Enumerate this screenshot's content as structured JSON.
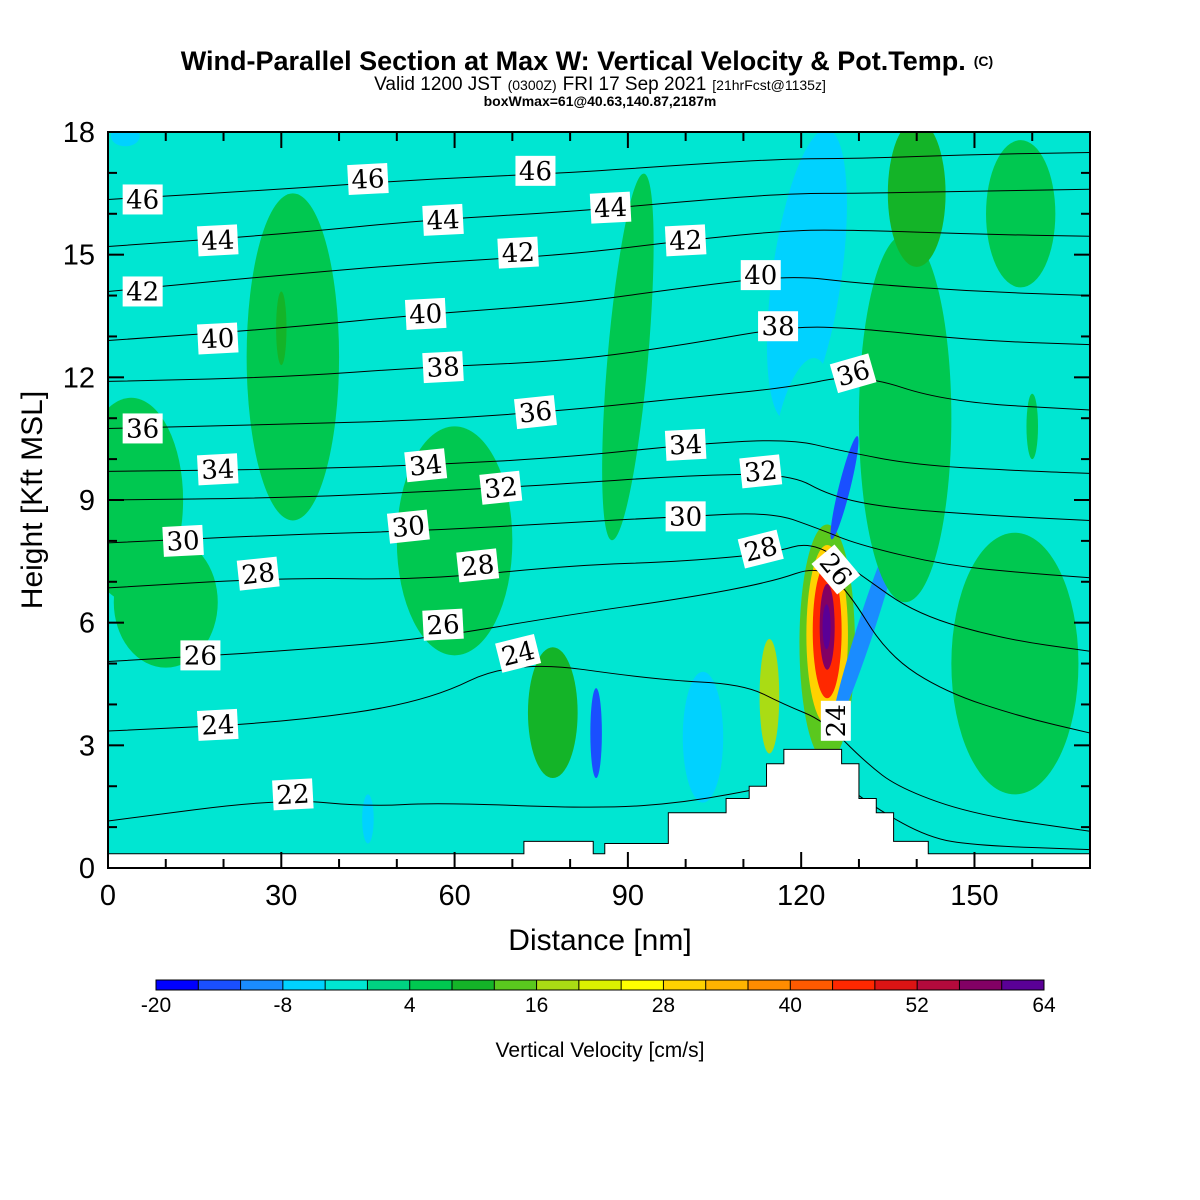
{
  "chart_data": {
    "type": "heatmap",
    "title": "Wind-Parallel Section at Max W: Vertical Velocity & Pot.Temp.",
    "title_mark": "(C)",
    "subtitle_parts": [
      "Valid 1200 JST",
      "(0300Z)",
      "FRI 17 Sep 2021",
      "[21hrFcst@1135z]"
    ],
    "subtitle2": "boxWmax=61@40.63,140.87,2187m",
    "xlabel": "Distance [nm]",
    "ylabel": "Height [Kft MSL]",
    "xlim": [
      0,
      170
    ],
    "ylim": [
      0,
      18
    ],
    "xticks": [
      0,
      30,
      60,
      90,
      120,
      150
    ],
    "yticks": [
      0,
      3,
      6,
      9,
      12,
      15,
      18
    ],
    "grid": false,
    "colorbar": {
      "title": "Vertical Velocity [cm/s]",
      "orientation": "horizontal",
      "placement": "bottom",
      "min": -20,
      "max": 64,
      "step": 4,
      "tick_labels": [
        "-20",
        "-8",
        "4",
        "16",
        "28",
        "40",
        "52",
        "64"
      ],
      "tick_values": [
        -20,
        -8,
        4,
        16,
        28,
        40,
        52,
        64
      ],
      "colors": [
        "#0000ff",
        "#1a4fff",
        "#1a8cff",
        "#00d2ff",
        "#00e6d2",
        "#00d282",
        "#00c850",
        "#14b428",
        "#5ac81e",
        "#aadc14",
        "#dcf000",
        "#ffff00",
        "#ffd200",
        "#ffb400",
        "#ff8c00",
        "#ff5a00",
        "#ff2800",
        "#dc1414",
        "#b40a3c",
        "#820064",
        "#5a0096"
      ]
    },
    "terrain_profile": [
      [
        0,
        0.35
      ],
      [
        72,
        0.35
      ],
      [
        72,
        0.65
      ],
      [
        84,
        0.65
      ],
      [
        84,
        0.35
      ],
      [
        86,
        0.35
      ],
      [
        86,
        0.6
      ],
      [
        97,
        0.6
      ],
      [
        97,
        1.35
      ],
      [
        107,
        1.35
      ],
      [
        107,
        1.7
      ],
      [
        111,
        1.7
      ],
      [
        111,
        2.0
      ],
      [
        114,
        2.0
      ],
      [
        114,
        2.55
      ],
      [
        117,
        2.55
      ],
      [
        117,
        2.9
      ],
      [
        127,
        2.9
      ],
      [
        127,
        2.55
      ],
      [
        130,
        2.55
      ],
      [
        130,
        1.7
      ],
      [
        133,
        1.7
      ],
      [
        133,
        1.35
      ],
      [
        136,
        1.35
      ],
      [
        136,
        0.65
      ],
      [
        142,
        0.65
      ],
      [
        142,
        0.35
      ],
      [
        170,
        0.35
      ]
    ],
    "theta_isentropes": [
      {
        "value": 22,
        "points": [
          [
            0,
            1.15
          ],
          [
            30,
            1.7
          ],
          [
            45,
            1.5
          ],
          [
            57,
            1.6
          ],
          [
            85,
            1.45
          ],
          [
            100,
            1.6
          ],
          [
            115,
            2.0
          ],
          [
            125,
            2.3
          ],
          [
            133,
            1.45
          ],
          [
            142,
            0.75
          ],
          [
            150,
            0.55
          ],
          [
            170,
            0.45
          ]
        ]
      },
      {
        "value": 24,
        "points": [
          [
            0,
            3.35
          ],
          [
            30,
            3.55
          ],
          [
            55,
            4.05
          ],
          [
            70,
            5.1
          ],
          [
            95,
            4.6
          ],
          [
            110,
            4.5
          ],
          [
            117,
            4.0
          ],
          [
            124,
            3.6
          ],
          [
            131,
            2.6
          ],
          [
            137,
            1.95
          ],
          [
            150,
            1.3
          ],
          [
            170,
            0.9
          ]
        ]
      },
      {
        "value": 26,
        "points": [
          [
            0,
            5.05
          ],
          [
            30,
            5.3
          ],
          [
            55,
            5.6
          ],
          [
            80,
            6.2
          ],
          [
            100,
            6.6
          ],
          [
            115,
            7.0
          ],
          [
            123,
            7.4
          ],
          [
            128,
            6.8
          ],
          [
            135,
            5.2
          ],
          [
            145,
            4.3
          ],
          [
            158,
            3.7
          ],
          [
            170,
            3.3
          ]
        ]
      },
      {
        "value": 28,
        "points": [
          [
            0,
            6.85
          ],
          [
            30,
            7.1
          ],
          [
            55,
            7.05
          ],
          [
            80,
            7.4
          ],
          [
            100,
            7.5
          ],
          [
            115,
            7.7
          ],
          [
            122,
            8.0
          ],
          [
            130,
            7.2
          ],
          [
            140,
            6.2
          ],
          [
            155,
            5.6
          ],
          [
            170,
            5.3
          ]
        ]
      },
      {
        "value": 30,
        "points": [
          [
            0,
            7.95
          ],
          [
            30,
            8.15
          ],
          [
            55,
            8.25
          ],
          [
            80,
            8.45
          ],
          [
            100,
            8.6
          ],
          [
            115,
            8.7
          ],
          [
            123,
            8.3
          ],
          [
            130,
            7.9
          ],
          [
            145,
            7.4
          ],
          [
            160,
            7.2
          ],
          [
            170,
            7.1
          ]
        ]
      },
      {
        "value": 32,
        "points": [
          [
            0,
            9.0
          ],
          [
            30,
            9.05
          ],
          [
            55,
            9.2
          ],
          [
            80,
            9.4
          ],
          [
            100,
            9.6
          ],
          [
            118,
            9.65
          ],
          [
            125,
            9.1
          ],
          [
            135,
            8.8
          ],
          [
            155,
            8.6
          ],
          [
            170,
            8.5
          ]
        ]
      },
      {
        "value": 34,
        "points": [
          [
            0,
            9.7
          ],
          [
            30,
            9.75
          ],
          [
            55,
            9.85
          ],
          [
            80,
            10.05
          ],
          [
            100,
            10.35
          ],
          [
            118,
            10.5
          ],
          [
            127,
            10.2
          ],
          [
            140,
            9.85
          ],
          [
            160,
            9.7
          ],
          [
            170,
            9.65
          ]
        ]
      },
      {
        "value": 36,
        "points": [
          [
            0,
            10.75
          ],
          [
            30,
            10.85
          ],
          [
            55,
            10.95
          ],
          [
            80,
            11.2
          ],
          [
            100,
            11.5
          ],
          [
            118,
            11.75
          ],
          [
            130,
            12.1
          ],
          [
            145,
            11.4
          ],
          [
            170,
            11.2
          ]
        ]
      },
      {
        "value": 38,
        "points": [
          [
            0,
            11.9
          ],
          [
            30,
            12.0
          ],
          [
            55,
            12.25
          ],
          [
            80,
            12.4
          ],
          [
            100,
            12.8
          ],
          [
            118,
            13.25
          ],
          [
            130,
            13.2
          ],
          [
            150,
            12.9
          ],
          [
            170,
            12.8
          ]
        ]
      },
      {
        "value": 40,
        "points": [
          [
            0,
            12.9
          ],
          [
            30,
            13.2
          ],
          [
            55,
            13.55
          ],
          [
            80,
            13.8
          ],
          [
            100,
            14.2
          ],
          [
            118,
            14.5
          ],
          [
            130,
            14.3
          ],
          [
            150,
            14.1
          ],
          [
            170,
            14.0
          ]
        ]
      },
      {
        "value": 42,
        "points": [
          [
            0,
            14.1
          ],
          [
            30,
            14.5
          ],
          [
            55,
            14.8
          ],
          [
            80,
            15.0
          ],
          [
            100,
            15.35
          ],
          [
            118,
            15.6
          ],
          [
            130,
            15.6
          ],
          [
            150,
            15.5
          ],
          [
            170,
            15.45
          ]
        ]
      },
      {
        "value": 44,
        "points": [
          [
            0,
            15.2
          ],
          [
            30,
            15.5
          ],
          [
            55,
            15.85
          ],
          [
            80,
            16.05
          ],
          [
            100,
            16.3
          ],
          [
            118,
            16.5
          ],
          [
            130,
            16.5
          ],
          [
            150,
            16.55
          ],
          [
            170,
            16.6
          ]
        ]
      },
      {
        "value": 46,
        "points": [
          [
            0,
            16.35
          ],
          [
            30,
            16.6
          ],
          [
            55,
            16.85
          ],
          [
            80,
            17.0
          ],
          [
            100,
            17.2
          ],
          [
            118,
            17.35
          ],
          [
            130,
            17.35
          ],
          [
            150,
            17.45
          ],
          [
            170,
            17.5
          ]
        ]
      }
    ],
    "isentrope_labels": [
      {
        "text": "46",
        "x": 6,
        "y": 16.35,
        "angle": 0
      },
      {
        "text": "46",
        "x": 45,
        "y": 16.85,
        "angle": -3
      },
      {
        "text": "46",
        "x": 74,
        "y": 17.05,
        "angle": 0
      },
      {
        "text": "44",
        "x": 19,
        "y": 15.35,
        "angle": -3
      },
      {
        "text": "44",
        "x": 58,
        "y": 15.85,
        "angle": -3
      },
      {
        "text": "44",
        "x": 87,
        "y": 16.15,
        "angle": -3
      },
      {
        "text": "42",
        "x": 6,
        "y": 14.1,
        "angle": 0
      },
      {
        "text": "42",
        "x": 71,
        "y": 15.05,
        "angle": -3
      },
      {
        "text": "42",
        "x": 100,
        "y": 15.35,
        "angle": -3
      },
      {
        "text": "40",
        "x": 19,
        "y": 12.95,
        "angle": -3
      },
      {
        "text": "40",
        "x": 55,
        "y": 13.55,
        "angle": -3
      },
      {
        "text": "40",
        "x": 113,
        "y": 14.5,
        "angle": 0
      },
      {
        "text": "38",
        "x": 58,
        "y": 12.25,
        "angle": -3
      },
      {
        "text": "38",
        "x": 116,
        "y": 13.25,
        "angle": 0
      },
      {
        "text": "36",
        "x": 6,
        "y": 10.75,
        "angle": 0
      },
      {
        "text": "36",
        "x": 74,
        "y": 11.15,
        "angle": -6
      },
      {
        "text": "36",
        "x": 129,
        "y": 12.1,
        "angle": -16
      },
      {
        "text": "34",
        "x": 19,
        "y": 9.75,
        "angle": -3
      },
      {
        "text": "34",
        "x": 55,
        "y": 9.85,
        "angle": -6
      },
      {
        "text": "34",
        "x": 100,
        "y": 10.35,
        "angle": -3
      },
      {
        "text": "32",
        "x": 68,
        "y": 9.3,
        "angle": -6
      },
      {
        "text": "32",
        "x": 113,
        "y": 9.7,
        "angle": -6
      },
      {
        "text": "30",
        "x": 13,
        "y": 8.0,
        "angle": -3
      },
      {
        "text": "30",
        "x": 52,
        "y": 8.35,
        "angle": -6
      },
      {
        "text": "30",
        "x": 100,
        "y": 8.6,
        "angle": 0
      },
      {
        "text": "28",
        "x": 26,
        "y": 7.2,
        "angle": -6
      },
      {
        "text": "28",
        "x": 64,
        "y": 7.4,
        "angle": -6
      },
      {
        "text": "28",
        "x": 113,
        "y": 7.8,
        "angle": -14
      },
      {
        "text": "26",
        "x": 16,
        "y": 5.2,
        "angle": 0
      },
      {
        "text": "26",
        "x": 58,
        "y": 5.95,
        "angle": -3
      },
      {
        "text": "26",
        "x": 126,
        "y": 7.3,
        "angle": 50
      },
      {
        "text": "24",
        "x": 19,
        "y": 3.5,
        "angle": -3
      },
      {
        "text": "24",
        "x": 71,
        "y": 5.25,
        "angle": -14
      },
      {
        "text": "24",
        "x": 126,
        "y": 3.6,
        "angle": -90
      },
      {
        "text": "22",
        "x": 32,
        "y": 1.8,
        "angle": -3
      }
    ],
    "w_features": [
      {
        "x": 124.5,
        "y": 5.5,
        "rx": 4.8,
        "ry": 2.9,
        "tilt": 0,
        "w": 14
      },
      {
        "x": 124.5,
        "y": 5.7,
        "rx": 3.6,
        "ry": 2.2,
        "tilt": 0,
        "w": 28
      },
      {
        "x": 124.5,
        "y": 5.8,
        "rx": 2.5,
        "ry": 1.65,
        "tilt": 0,
        "w": 44
      },
      {
        "x": 124.5,
        "y": 5.9,
        "rx": 1.3,
        "ry": 1.05,
        "tilt": 0,
        "w": 56
      },
      {
        "x": 124.4,
        "y": 5.9,
        "rx": 0.7,
        "ry": 0.55,
        "tilt": 0,
        "w": 63
      },
      {
        "x": 114.5,
        "y": 4.2,
        "rx": 1.7,
        "ry": 1.4,
        "tilt": 0,
        "w": 18
      },
      {
        "x": 131.5,
        "y": 6.0,
        "rx": 1.5,
        "ry": 2.8,
        "tilt": 18,
        "w": -10
      },
      {
        "x": 127.5,
        "y": 9.3,
        "rx": 1.0,
        "ry": 1.3,
        "tilt": 14,
        "w": -13
      },
      {
        "x": 121,
        "y": 14.5,
        "rx": 6.0,
        "ry": 3.6,
        "tilt": 8,
        "w": -6
      },
      {
        "x": 120,
        "y": 10.5,
        "rx": 4.5,
        "ry": 2.0,
        "tilt": 10,
        "w": -4
      },
      {
        "x": 84.5,
        "y": 3.3,
        "rx": 1.0,
        "ry": 1.1,
        "tilt": 0,
        "w": -14
      },
      {
        "x": 103,
        "y": 3.2,
        "rx": 3.5,
        "ry": 1.6,
        "tilt": 0,
        "w": -8
      },
      {
        "x": 91,
        "y": 2.9,
        "rx": 2.5,
        "ry": 1.2,
        "tilt": 0,
        "w": -4
      },
      {
        "x": 77,
        "y": 3.8,
        "rx": 4.3,
        "ry": 1.6,
        "tilt": 0,
        "w": 9
      },
      {
        "x": 90,
        "y": 12.5,
        "rx": 3.5,
        "ry": 4.5,
        "tilt": 5,
        "w": 6
      },
      {
        "x": 157,
        "y": 5.0,
        "rx": 11,
        "ry": 3.2,
        "tilt": 0,
        "w": 6
      },
      {
        "x": 4,
        "y": 9.0,
        "rx": 9,
        "ry": 2.5,
        "tilt": 0,
        "w": 7
      },
      {
        "x": 10,
        "y": 6.5,
        "rx": 9,
        "ry": 1.6,
        "tilt": 0,
        "w": 6
      },
      {
        "x": 32,
        "y": 12.5,
        "rx": 8,
        "ry": 4,
        "tilt": 0,
        "w": 6
      },
      {
        "x": 60,
        "y": 8.0,
        "rx": 10,
        "ry": 2.8,
        "tilt": 0,
        "w": 6
      },
      {
        "x": 138,
        "y": 11.0,
        "rx": 8,
        "ry": 4.5,
        "tilt": 0,
        "w": 6
      },
      {
        "x": 158,
        "y": 16.0,
        "rx": 6,
        "ry": 1.8,
        "tilt": 0,
        "w": 7
      },
      {
        "x": 140,
        "y": 16.5,
        "rx": 5,
        "ry": 1.8,
        "tilt": 0,
        "w": 8
      },
      {
        "x": 30,
        "y": 13.2,
        "rx": 0.9,
        "ry": 0.9,
        "tilt": 0,
        "w": 10
      },
      {
        "x": 160,
        "y": 10.8,
        "rx": 1.0,
        "ry": 0.8,
        "tilt": 0,
        "w": 6
      },
      {
        "x": 45,
        "y": 1.2,
        "rx": 1.0,
        "ry": 0.6,
        "tilt": 0,
        "w": -6
      },
      {
        "x": 3,
        "y": 17.9,
        "rx": 2.5,
        "ry": 0.25,
        "tilt": 0,
        "w": -6
      }
    ]
  }
}
